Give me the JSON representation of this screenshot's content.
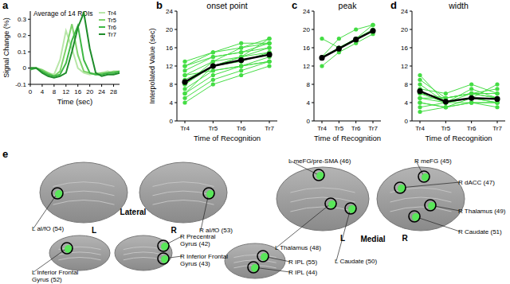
{
  "chart_data": [
    {
      "type": "line",
      "panel_label": "a",
      "title": "Average of 14 ROIs",
      "x_label": "Time (sec)",
      "y_label": "Signal Change (%)",
      "x": [
        0,
        2,
        4,
        6,
        8,
        10,
        12,
        14,
        16,
        18,
        20,
        22,
        24,
        26,
        28,
        30
      ],
      "xlim": [
        0,
        30
      ],
      "xticks": [
        0,
        4,
        8,
        12,
        16,
        20,
        24,
        28
      ],
      "ylim": [
        -0.1,
        0.35
      ],
      "yticks": [
        -0.1,
        0,
        0.1,
        0.2,
        0.3
      ],
      "legend": "upper right",
      "grid": false,
      "series": [
        {
          "name": "Tr4",
          "color": "#b8e6a8",
          "values": [
            0,
            0,
            -0.02,
            -0.03,
            -0.04,
            0.05,
            0.23,
            0.12,
            0.0,
            -0.03,
            -0.04,
            -0.03,
            -0.03,
            -0.02,
            -0.03,
            -0.02
          ]
        },
        {
          "name": "Tr5",
          "color": "#7fd36b",
          "values": [
            0,
            0,
            -0.01,
            -0.03,
            -0.05,
            -0.02,
            0.12,
            0.27,
            0.08,
            -0.02,
            -0.03,
            -0.04,
            -0.03,
            -0.03,
            -0.02,
            -0.02
          ]
        },
        {
          "name": "Tr6",
          "color": "#3fb845",
          "values": [
            -0.01,
            0,
            -0.02,
            -0.04,
            -0.05,
            -0.04,
            0.03,
            0.17,
            0.26,
            0.05,
            -0.03,
            -0.04,
            -0.04,
            -0.03,
            -0.03,
            -0.02
          ]
        },
        {
          "name": "Tr7",
          "color": "#1e8c2a",
          "values": [
            0,
            0,
            -0.03,
            -0.05,
            -0.06,
            -0.05,
            -0.03,
            0.1,
            0.25,
            0.34,
            0.12,
            -0.03,
            -0.05,
            -0.04,
            -0.04,
            -0.03
          ]
        }
      ]
    },
    {
      "type": "line",
      "panel_label": "b",
      "title": "onset point",
      "x_label": "Time of Recognition",
      "y_label": "Interpolated Value (sec)",
      "categories": [
        "Tr4",
        "Tr5",
        "Tr6",
        "Tr7"
      ],
      "ylim": [
        0,
        24
      ],
      "yticks": [
        0,
        4,
        8,
        12,
        16,
        20,
        24
      ],
      "marker": "circle",
      "grid": false,
      "series": [
        {
          "color": "#44dd44",
          "values": [
            4,
            8,
            10,
            12
          ]
        },
        {
          "color": "#44dd44",
          "values": [
            5,
            9,
            11,
            13
          ]
        },
        {
          "color": "#44dd44",
          "values": [
            6,
            10,
            12,
            13
          ]
        },
        {
          "color": "#44dd44",
          "values": [
            7,
            11,
            12,
            14
          ]
        },
        {
          "color": "#44dd44",
          "values": [
            8,
            12,
            13,
            15
          ]
        },
        {
          "color": "#44dd44",
          "values": [
            9,
            12,
            14,
            15
          ]
        },
        {
          "color": "#44dd44",
          "values": [
            10,
            13,
            14,
            16
          ]
        },
        {
          "color": "#44dd44",
          "values": [
            11,
            14,
            15,
            16
          ]
        },
        {
          "color": "#44dd44",
          "values": [
            12,
            14,
            15,
            17
          ]
        },
        {
          "color": "#44dd44",
          "values": [
            13,
            15,
            16,
            17
          ]
        },
        {
          "color": "#44dd44",
          "values": [
            6,
            12,
            14,
            18
          ]
        },
        {
          "color": "#44dd44",
          "values": [
            8,
            13,
            16,
            18
          ]
        },
        {
          "color": "#44dd44",
          "values": [
            10,
            11,
            12,
            13
          ]
        },
        {
          "color": "#44dd44",
          "values": [
            12,
            15,
            17,
            17
          ]
        },
        {
          "color": "#000000",
          "values": [
            8.5,
            12,
            13.3,
            14.5
          ]
        }
      ]
    },
    {
      "type": "line",
      "panel_label": "c",
      "title": "peak",
      "x_label": "Time of Recognition",
      "categories": [
        "Tr4",
        "Tr5",
        "Tr6",
        "Tr7"
      ],
      "ylim": [
        0,
        24
      ],
      "yticks": [
        0,
        4,
        8,
        12,
        16,
        20,
        24
      ],
      "marker": "circle",
      "grid": false,
      "series": [
        {
          "color": "#44dd44",
          "values": [
            14,
            16,
            18,
            20
          ]
        },
        {
          "color": "#44dd44",
          "values": [
            18,
            16,
            18,
            21
          ]
        },
        {
          "color": "#44dd44",
          "values": [
            14,
            18,
            20,
            21
          ]
        },
        {
          "color": "#44dd44",
          "values": [
            12,
            15,
            17,
            19
          ]
        },
        {
          "color": "#000000",
          "values": [
            13.8,
            15.8,
            17.8,
            19.7
          ]
        }
      ]
    },
    {
      "type": "line",
      "panel_label": "d",
      "title": "width",
      "x_label": "Time of Recognition",
      "categories": [
        "Tr4",
        "Tr5",
        "Tr6",
        "Tr7"
      ],
      "ylim": [
        0,
        24
      ],
      "yticks": [
        0,
        4,
        8,
        12,
        16,
        20,
        24
      ],
      "marker": "circle",
      "grid": false,
      "series": [
        {
          "color": "#44dd44",
          "values": [
            10,
            4,
            6,
            5
          ]
        },
        {
          "color": "#44dd44",
          "values": [
            8,
            4,
            5,
            4
          ]
        },
        {
          "color": "#44dd44",
          "values": [
            6,
            5,
            6,
            6
          ]
        },
        {
          "color": "#44dd44",
          "values": [
            4,
            3,
            5,
            4
          ]
        },
        {
          "color": "#44dd44",
          "values": [
            7,
            6,
            8,
            6
          ]
        },
        {
          "color": "#44dd44",
          "values": [
            5,
            4,
            4,
            4
          ]
        },
        {
          "color": "#44dd44",
          "values": [
            3,
            4,
            7,
            5
          ]
        },
        {
          "color": "#44dd44",
          "values": [
            9,
            5,
            6,
            5
          ]
        },
        {
          "color": "#44dd44",
          "values": [
            2,
            3,
            4,
            4
          ]
        },
        {
          "color": "#44dd44",
          "values": [
            6,
            4,
            5,
            8
          ]
        },
        {
          "color": "#44dd44",
          "values": [
            5,
            5,
            6,
            7
          ]
        },
        {
          "color": "#44dd44",
          "values": [
            4,
            3,
            4,
            3
          ]
        },
        {
          "color": "#000000",
          "values": [
            6.5,
            4.2,
            5,
            4.8
          ]
        }
      ]
    }
  ],
  "brain_panel": {
    "panel_label": "e",
    "views": [
      "Lateral",
      "Medial"
    ],
    "hemispheres": [
      "L",
      "R",
      "L",
      "R"
    ],
    "regions": [
      "L aI/fO (54)",
      "R aI/fO (53)",
      "L meFG/pre-SMA (46)",
      "R meFG (45)",
      "R dACC (47)",
      "L Thalamus (48)",
      "L Caudate (50)",
      "R Thalamus (49)",
      "R Caudate (51)",
      "L Inferior Frontal Gyrus (52)",
      "R Precentral Gyrus (42)",
      "R Inferior Frontal Gyrus (43)",
      "R IPL (55)",
      "R IPL (44)"
    ]
  }
}
